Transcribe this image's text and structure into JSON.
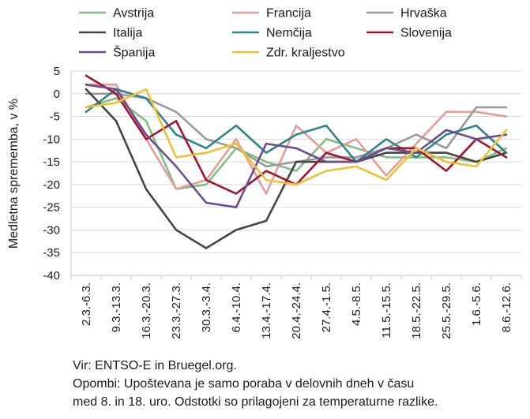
{
  "chart_data": {
    "type": "line",
    "ylabel": "Medletna sprememba, v %",
    "ylim": [
      -40,
      5
    ],
    "yticks": [
      5,
      0,
      -5,
      -10,
      -15,
      -20,
      -25,
      -30,
      -35,
      -40
    ],
    "grid": true,
    "legend_position": "top",
    "categories": [
      "2.3.-6.3.",
      "9.3.-13.3.",
      "16.3.-20.3.",
      "23.3.-27.3.",
      "30.3.-3.4.",
      "6.4.-10.4.",
      "13.4.-17.4.",
      "20.4.-24.4.",
      "27.4.-1.5.",
      "4.5.-8.5.",
      "11.5.-15.5.",
      "18.5.-22.5.",
      "25.5.-29.5.",
      "1.6.-5.6.",
      "8.6.-12.6."
    ],
    "series": [
      {
        "name": "Avstrija",
        "color": "#7fbf7f",
        "values": [
          -3,
          -1,
          -6,
          -21,
          -20,
          -12,
          -15,
          -17,
          -10,
          -12,
          -14,
          -14,
          -14,
          -15,
          -12
        ]
      },
      {
        "name": "Francija",
        "color": "#e89c98",
        "values": [
          2,
          2,
          -10,
          -21,
          -19,
          -10,
          -22,
          -7,
          -13,
          -10,
          -18,
          -11,
          -4,
          -4,
          -5
        ]
      },
      {
        "name": "Hrvaška",
        "color": "#999999",
        "values": [
          0,
          0,
          -1,
          -4,
          -10,
          -12,
          -16,
          -15,
          -14,
          -14,
          -12,
          -9,
          -12,
          -3,
          -3
        ]
      },
      {
        "name": "Italija",
        "color": "#454545",
        "values": [
          1,
          -6,
          -21,
          -30,
          -34,
          -30,
          -28,
          -15,
          -15,
          -15,
          -13,
          -13,
          -13,
          -15,
          -13
        ]
      },
      {
        "name": "Nemčija",
        "color": "#2e8587",
        "values": [
          -4,
          1,
          -1,
          -9,
          -12,
          -7,
          -13,
          -9,
          -7,
          -15,
          -10,
          -14,
          -9,
          -7,
          -13
        ]
      },
      {
        "name": "Slovenija",
        "color": "#a3142a",
        "values": [
          4,
          0,
          -10,
          -6,
          -19,
          -22,
          -17,
          -20,
          -13,
          -15,
          -12,
          -12,
          -17,
          -10,
          -14
        ]
      },
      {
        "name": "Španija",
        "color": "#6a4c93",
        "values": [
          2,
          1,
          -9,
          -16,
          -24,
          -25,
          -11,
          -12,
          -15,
          -15,
          -12,
          -13,
          -8,
          -10,
          -9
        ]
      },
      {
        "name": "Zdr. kraljestvo",
        "color": "#f0c032",
        "values": [
          -3,
          -2,
          1,
          -14,
          -13,
          -11,
          -19,
          -20,
          -17,
          -16,
          -19,
          -12,
          -15,
          -16,
          -8
        ]
      }
    ]
  },
  "notes": {
    "source": "Vir: ENTSO-E in Bruegel.org.",
    "note_line1": "Opombi: Upoštevana je samo poraba v delovnih dneh v času",
    "note_line2": "med 8. in 18. uro. Odstotki so prilagojeni za temperaturne razlike."
  }
}
